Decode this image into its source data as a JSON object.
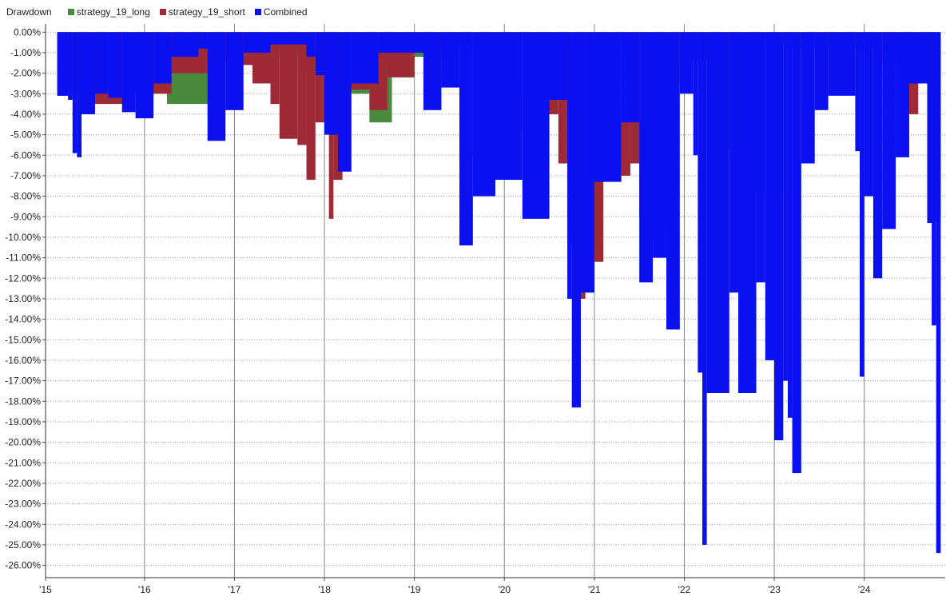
{
  "chart_data": {
    "type": "area",
    "title": "Drawdown",
    "xlabel": "",
    "ylabel": "",
    "ylim": [
      -26.6,
      0.4
    ],
    "yticks": [
      "0.00%",
      "-1.00%",
      "-2.00%",
      "-3.00%",
      "-4.00%",
      "-5.00%",
      "-6.00%",
      "-7.00%",
      "-8.00%",
      "-9.00%",
      "-10.00%",
      "-11.00%",
      "-12.00%",
      "-13.00%",
      "-14.00%",
      "-15.00%",
      "-16.00%",
      "-17.00%",
      "-18.00%",
      "-19.00%",
      "-20.00%",
      "-21.00%",
      "-22.00%",
      "-23.00%",
      "-24.00%",
      "-25.00%",
      "-26.00%"
    ],
    "ytick_values": [
      0,
      -1,
      -2,
      -3,
      -4,
      -5,
      -6,
      -7,
      -8,
      -9,
      -10,
      -11,
      -12,
      -13,
      -14,
      -15,
      -16,
      -17,
      -18,
      -19,
      -20,
      -21,
      -22,
      -23,
      -24,
      -25,
      -26
    ],
    "xlim": [
      2015.0,
      2025.0
    ],
    "xticks": [
      "'15",
      "'16",
      "'17",
      "'18",
      "'19",
      "'20",
      "'21",
      "'22",
      "'23",
      "'24"
    ],
    "xtick_values": [
      2015.0,
      2016.1,
      2017.1,
      2018.1,
      2019.1,
      2020.1,
      2021.1,
      2022.1,
      2023.1,
      2024.1
    ],
    "grid": "horizontal-dotted",
    "legend_position": "top-left",
    "series": [
      {
        "name": "strategy_19_long",
        "color": "#4a8a3e",
        "points": [
          [
            2015.13,
            -3.1
          ],
          [
            2015.6,
            -2.4
          ],
          [
            2015.8,
            -2.9
          ],
          [
            2016.1,
            -3.8
          ],
          [
            2016.2,
            -2.2
          ],
          [
            2016.35,
            -3.5
          ],
          [
            2016.9,
            -0.7
          ],
          [
            2017.3,
            -1.2
          ],
          [
            2017.9,
            -1.8
          ],
          [
            2018.3,
            -2.2
          ],
          [
            2018.4,
            -3.0
          ],
          [
            2018.6,
            -4.4
          ],
          [
            2018.85,
            -2.2
          ],
          [
            2019.1,
            -1.2
          ],
          [
            2019.45,
            -0.4
          ],
          [
            2019.6,
            -6.0
          ],
          [
            2019.75,
            -6.2
          ],
          [
            2019.9,
            -5.0
          ],
          [
            2020.1,
            -4.8
          ],
          [
            2020.3,
            -2.7
          ],
          [
            2020.6,
            -1.0
          ],
          [
            2021.3,
            -0.5
          ],
          [
            2022.4,
            -5.0
          ],
          [
            2022.55,
            -5.7
          ],
          [
            2022.8,
            -5.0
          ],
          [
            2022.9,
            -7.8
          ],
          [
            2023.2,
            -0.8
          ],
          [
            2024.2,
            -0.5
          ],
          [
            2024.95,
            0.0
          ]
        ]
      },
      {
        "name": "strategy_19_short",
        "color": "#9e2a36",
        "points": [
          [
            2015.13,
            -2.8
          ],
          [
            2015.4,
            -4.0
          ],
          [
            2015.55,
            -3.5
          ],
          [
            2016.0,
            -3.0
          ],
          [
            2016.4,
            -2.0
          ],
          [
            2016.8,
            -1.4
          ],
          [
            2017.1,
            -1.6
          ],
          [
            2017.3,
            -2.5
          ],
          [
            2017.5,
            -3.5
          ],
          [
            2017.6,
            -5.2
          ],
          [
            2017.8,
            -5.5
          ],
          [
            2017.9,
            -7.2
          ],
          [
            2018.0,
            -4.4
          ],
          [
            2018.15,
            -9.1
          ],
          [
            2018.2,
            -7.2
          ],
          [
            2018.3,
            -2.8
          ],
          [
            2018.6,
            -3.8
          ],
          [
            2018.8,
            -2.2
          ],
          [
            2019.1,
            -1.0
          ],
          [
            2019.4,
            -0.6
          ],
          [
            2019.6,
            -0.8
          ],
          [
            2019.8,
            -1.5
          ],
          [
            2020.0,
            -2.0
          ],
          [
            2020.3,
            -3.0
          ],
          [
            2020.5,
            -4.0
          ],
          [
            2020.7,
            -6.4
          ],
          [
            2020.8,
            -10.3
          ],
          [
            2020.9,
            -13.0
          ],
          [
            2021.0,
            -12.6
          ],
          [
            2021.1,
            -11.2
          ],
          [
            2021.2,
            -6.4
          ],
          [
            2021.4,
            -7.0
          ],
          [
            2021.5,
            -6.4
          ],
          [
            2021.6,
            -9.0
          ],
          [
            2021.7,
            -10.0
          ],
          [
            2021.8,
            -9.6
          ],
          [
            2021.9,
            -2.5
          ],
          [
            2022.05,
            -1.4
          ],
          [
            2022.4,
            -0.5
          ],
          [
            2023.4,
            -0.6
          ],
          [
            2023.6,
            -0.4
          ],
          [
            2024.3,
            -1.5
          ],
          [
            2024.5,
            -4.0
          ],
          [
            2024.7,
            -2.5
          ],
          [
            2024.8,
            -9.3
          ],
          [
            2024.95,
            0.0
          ]
        ]
      },
      {
        "name": "Combined",
        "color": "#0a10f0",
        "points": [
          [
            2015.13,
            -3.1
          ],
          [
            2015.25,
            -3.3
          ],
          [
            2015.3,
            -5.9
          ],
          [
            2015.35,
            -6.1
          ],
          [
            2015.4,
            -4.0
          ],
          [
            2015.55,
            -3.0
          ],
          [
            2015.7,
            -3.2
          ],
          [
            2015.85,
            -3.9
          ],
          [
            2016.0,
            -4.2
          ],
          [
            2016.2,
            -2.5
          ],
          [
            2016.4,
            -1.2
          ],
          [
            2016.7,
            -0.8
          ],
          [
            2016.8,
            -5.3
          ],
          [
            2017.0,
            -3.8
          ],
          [
            2017.2,
            -1.0
          ],
          [
            2017.5,
            -0.6
          ],
          [
            2017.9,
            -1.2
          ],
          [
            2018.0,
            -2.1
          ],
          [
            2018.1,
            -5.0
          ],
          [
            2018.25,
            -6.8
          ],
          [
            2018.4,
            -2.5
          ],
          [
            2018.7,
            -1.0
          ],
          [
            2019.2,
            -3.8
          ],
          [
            2019.4,
            -2.7
          ],
          [
            2019.6,
            -10.4
          ],
          [
            2019.75,
            -8.0
          ],
          [
            2020.0,
            -7.2
          ],
          [
            2020.3,
            -9.1
          ],
          [
            2020.6,
            -3.3
          ],
          [
            2020.8,
            -13.0
          ],
          [
            2020.85,
            -18.3
          ],
          [
            2020.95,
            -12.7
          ],
          [
            2021.1,
            -7.3
          ],
          [
            2021.4,
            -4.4
          ],
          [
            2021.6,
            -12.2
          ],
          [
            2021.75,
            -11.0
          ],
          [
            2021.9,
            -14.5
          ],
          [
            2022.05,
            -3.0
          ],
          [
            2022.2,
            -6.0
          ],
          [
            2022.25,
            -16.6
          ],
          [
            2022.3,
            -25.0
          ],
          [
            2022.35,
            -17.6
          ],
          [
            2022.6,
            -12.7
          ],
          [
            2022.7,
            -17.6
          ],
          [
            2022.9,
            -12.2
          ],
          [
            2023.0,
            -16.0
          ],
          [
            2023.1,
            -19.9
          ],
          [
            2023.2,
            -17.0
          ],
          [
            2023.25,
            -18.8
          ],
          [
            2023.3,
            -21.5
          ],
          [
            2023.4,
            -6.4
          ],
          [
            2023.55,
            -3.8
          ],
          [
            2023.7,
            -3.1
          ],
          [
            2024.0,
            -5.8
          ],
          [
            2024.05,
            -16.8
          ],
          [
            2024.1,
            -8.0
          ],
          [
            2024.2,
            -12.0
          ],
          [
            2024.3,
            -9.6
          ],
          [
            2024.45,
            -6.1
          ],
          [
            2024.6,
            -2.5
          ],
          [
            2024.8,
            -9.3
          ],
          [
            2024.85,
            -14.3
          ],
          [
            2024.9,
            -25.4
          ],
          [
            2024.95,
            -26.1
          ]
        ]
      }
    ]
  }
}
